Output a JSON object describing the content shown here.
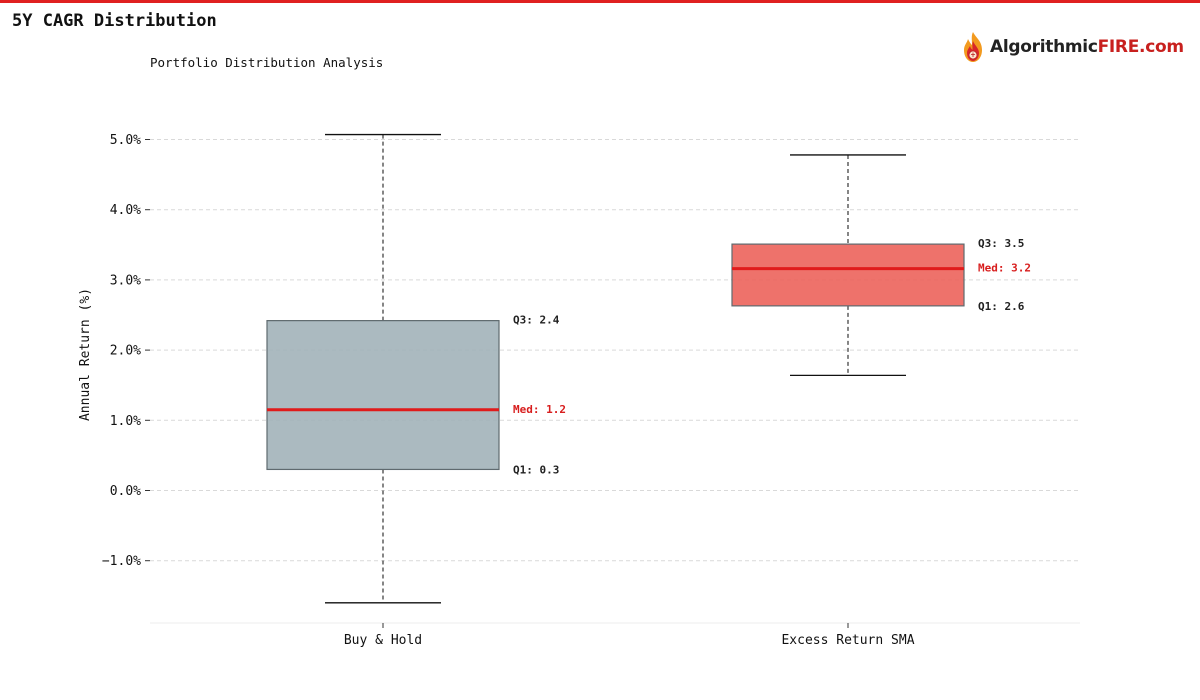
{
  "page": {
    "title": "5Y CAGR Distribution",
    "subtitle": "Portfolio Distribution Analysis",
    "brand": {
      "name_main": "Algorithmic",
      "name_accent": "FIRE",
      "name_domain": ".com",
      "icon": "flame-logo-icon"
    }
  },
  "colors": {
    "accent": "#e02020",
    "median": "#e01b1b",
    "box_1": "#9fb0b7",
    "box_2": "#ec5e57"
  },
  "chart_data": {
    "type": "box",
    "title": "",
    "xlabel": "",
    "ylabel": "Annual Return (%)",
    "ylim": [
      -1.9,
      5.2
    ],
    "yticks": [
      -1.0,
      0.0,
      1.0,
      2.0,
      3.0,
      4.0,
      5.0
    ],
    "ytick_labels": [
      "−1.0%",
      "0.0%",
      "1.0%",
      "2.0%",
      "3.0%",
      "4.0%",
      "5.0%"
    ],
    "grid": true,
    "categories": [
      "Buy & Hold",
      "Excess Return SMA"
    ],
    "boxes": [
      {
        "category": "Buy & Hold",
        "whisker_low": -1.6,
        "q1": 0.3,
        "median": 1.15,
        "q3": 2.42,
        "whisker_high": 5.07,
        "color": "#9fb0b7",
        "labels": {
          "q3": "Q3: 2.4",
          "median": "Med: 1.2",
          "q1": "Q1: 0.3"
        }
      },
      {
        "category": "Excess Return SMA",
        "whisker_low": 1.64,
        "q1": 2.63,
        "median": 3.16,
        "q3": 3.51,
        "whisker_high": 4.78,
        "color": "#ec5e57",
        "labels": {
          "q3": "Q3: 3.5",
          "median": "Med: 3.2",
          "q1": "Q1: 2.6"
        }
      }
    ]
  }
}
